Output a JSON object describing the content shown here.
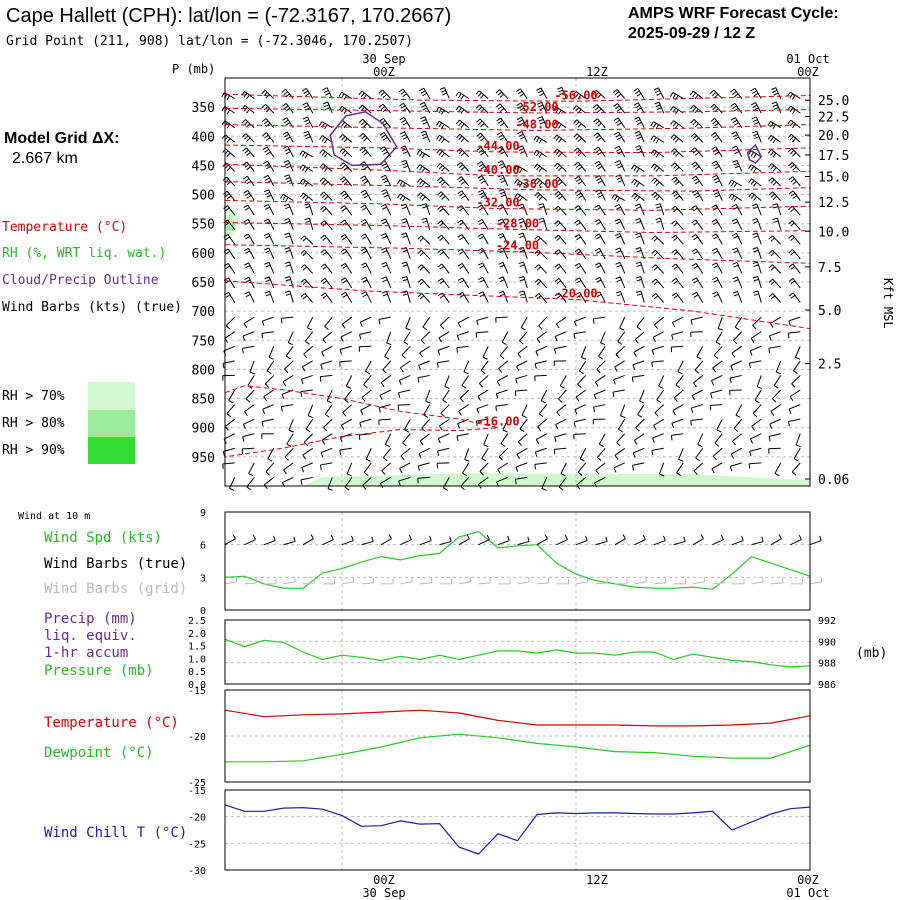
{
  "header": {
    "title": "Cape Hallett (CPH):  lat/lon = (-72.3167, 170.2667)",
    "grid_point": "Grid Point (211, 908) lat/lon = (-72.3046, 170.2507)",
    "cycle_label": "AMPS WRF Forecast Cycle:",
    "cycle_value": "2025-09-29 / 12  Z",
    "model_grid_label": "Model Grid ΔX:",
    "model_grid_value": "2.667 km"
  },
  "time_axis": {
    "top": [
      {
        "date": "30 Sep",
        "time": "00Z"
      },
      {
        "date": "",
        "time": "12Z"
      },
      {
        "date": "01 Oct",
        "time": "00Z"
      }
    ],
    "bottom": [
      {
        "time": "00Z",
        "date": "30 Sep"
      },
      {
        "time": "12Z",
        "date": ""
      },
      {
        "time": "00Z",
        "date": "01 Oct"
      }
    ]
  },
  "legend": {
    "temperature": "Temperature (°C)",
    "rh": "RH (%, WRT liq. wat.)",
    "cloud": "Cloud/Precip Outline",
    "wind": "Wind Barbs (kts) (true)",
    "rh_levels": [
      {
        "label": "RH > 70%",
        "color": "#d2f8d2"
      },
      {
        "label": "RH > 80%",
        "color": "#9ceb9c"
      },
      {
        "label": "RH > 90%",
        "color": "#33dd33"
      }
    ]
  },
  "colors": {
    "temperature": "#dd0000",
    "rh_green": "#22cc22",
    "cloud": "#6a2b8f",
    "wind_chill": "#1c1ca8",
    "grid_barbs": "#bbbbbb",
    "text": "#000000"
  },
  "chart_data": [
    {
      "type": "line",
      "name": "time-height cross section",
      "ylabel": "P (mb)",
      "yticks": [
        "350",
        "400",
        "450",
        "500",
        "550",
        "600",
        "650",
        "700",
        "750",
        "800",
        "850",
        "900",
        "950"
      ],
      "ylim": [
        1000,
        300
      ],
      "right_label": "Kft MSL",
      "right_ticks": [
        "25.0",
        "22.5",
        "20.0",
        "17.5",
        "15.0",
        "12.5",
        "10.0",
        "7.5",
        "5.0",
        "2.5",
        "0.06"
      ],
      "x_range_hours": [
        -6,
        24
      ],
      "isotherms": [
        {
          "label": "-56.00",
          "points": [
            [
              -6,
              328
            ],
            [
              4,
              338
            ],
            [
              12,
              340
            ],
            [
              18,
              335
            ],
            [
              24,
              330
            ]
          ]
        },
        {
          "label": "-52.00",
          "points": [
            [
              -6,
              352
            ],
            [
              2,
              356
            ],
            [
              10,
              360
            ],
            [
              18,
              358
            ],
            [
              24,
              354
            ]
          ]
        },
        {
          "label": "-48.00",
          "points": [
            [
              -6,
              380
            ],
            [
              3,
              386
            ],
            [
              10,
              390
            ],
            [
              18,
              386
            ],
            [
              24,
              380
            ]
          ]
        },
        {
          "label": "-44.00",
          "points": [
            [
              -6,
              415
            ],
            [
              2,
              420
            ],
            [
              8,
              427
            ],
            [
              16,
              428
            ],
            [
              24,
              420
            ]
          ]
        },
        {
          "label": "-40.00",
          "points": [
            [
              -6,
              448
            ],
            [
              2,
              458
            ],
            [
              8,
              468
            ],
            [
              16,
              468
            ],
            [
              24,
              460
            ]
          ]
        },
        {
          "label": "-36.00",
          "points": [
            [
              -6,
              478
            ],
            [
              4,
              486
            ],
            [
              10,
              492
            ],
            [
              18,
              494
            ],
            [
              24,
              488
            ]
          ]
        },
        {
          "label": "-32.00",
          "points": [
            [
              -6,
              510
            ],
            [
              2,
              516
            ],
            [
              8,
              524
            ],
            [
              16,
              527
            ],
            [
              24,
              520
            ]
          ]
        },
        {
          "label": "-28.00",
          "points": [
            [
              -6,
              548
            ],
            [
              2,
              553
            ],
            [
              9,
              560
            ],
            [
              16,
              565
            ],
            [
              24,
              562
            ]
          ]
        },
        {
          "label": "-24.00",
          "points": [
            [
              -6,
              586
            ],
            [
              3,
              592
            ],
            [
              9,
              598
            ],
            [
              17,
              610
            ],
            [
              24,
              618
            ]
          ]
        },
        {
          "label": "-20.00",
          "points": [
            [
              -6,
              648
            ],
            [
              1,
              665
            ],
            [
              6,
              672
            ],
            [
              12,
              680
            ],
            [
              18,
              700
            ],
            [
              24,
              730
            ]
          ]
        },
        {
          "label": "-16.00",
          "points": [
            [
              -6,
              840
            ],
            [
              -5,
              828
            ],
            [
              -3,
              835
            ],
            [
              0,
              850
            ],
            [
              3,
              872
            ],
            [
              6,
              885
            ],
            [
              8,
              900
            ],
            [
              6,
              905
            ],
            [
              3,
              903
            ],
            [
              0,
              915
            ],
            [
              -3,
              935
            ],
            [
              -6,
              950
            ]
          ]
        }
      ],
      "rh_regions": [
        {
          "level": ">70%",
          "points": [
            [
              -6,
              520
            ],
            [
              -5.2,
              535
            ],
            [
              -5.6,
              570
            ],
            [
              -6,
              570
            ]
          ]
        },
        {
          "level": ">80%",
          "points": [
            [
              -6,
              540
            ],
            [
              -5.4,
              548
            ],
            [
              -5.6,
              562
            ],
            [
              -6,
              562
            ]
          ]
        },
        {
          "level": ">70%",
          "points": [
            [
              -2,
              1000
            ],
            [
              -1,
              985
            ],
            [
              6,
              978
            ],
            [
              18,
              980
            ],
            [
              24,
              990
            ],
            [
              24,
              1000
            ]
          ]
        }
      ],
      "cloud_outline": [
        {
          "points": [
            [
              -0.6,
              398
            ],
            [
              0.2,
              365
            ],
            [
              1.2,
              358
            ],
            [
              2.1,
              378
            ],
            [
              2.8,
              418
            ],
            [
              2,
              448
            ],
            [
              0.5,
              450
            ],
            [
              -0.4,
              432
            ]
          ]
        },
        {
          "points": [
            [
              20.8,
              428
            ],
            [
              21.2,
              415
            ],
            [
              21.5,
              435
            ],
            [
              21.2,
              446
            ],
            [
              20.9,
              440
            ]
          ]
        }
      ]
    },
    {
      "type": "line",
      "name": "10 m wind",
      "title": "Wind at 10 m",
      "legend": [
        "Wind Spd (kts)",
        "Wind Barbs (true)",
        "Wind Barbs (grid)"
      ],
      "ylim": [
        0,
        9
      ],
      "yticks": [
        "0",
        "3",
        "6",
        "9"
      ],
      "x_hours": [
        -6,
        -5,
        -4,
        -3,
        -2,
        -1,
        0,
        1,
        2,
        3,
        4,
        5,
        6,
        7,
        8,
        9,
        10,
        11,
        12,
        13,
        14,
        15,
        16,
        17,
        18,
        19,
        20,
        21,
        22,
        23,
        24
      ],
      "series": [
        {
          "name": "Wind Spd (kts)",
          "values": [
            3.0,
            3.1,
            2.4,
            2.0,
            2.0,
            3.4,
            3.8,
            4.4,
            4.9,
            4.6,
            5.0,
            5.2,
            6.7,
            7.2,
            5.7,
            5.9,
            6.0,
            4.3,
            3.3,
            2.7,
            2.4,
            2.1,
            2.0,
            2.0,
            2.1,
            1.9,
            3.3,
            4.9,
            4.3,
            3.7,
            3.1
          ]
        }
      ]
    },
    {
      "type": "line",
      "name": "precip and pressure",
      "legend": [
        "Precip (mm)",
        "liq. equiv.",
        "1-hr accum",
        "Pressure (mb)"
      ],
      "ylim": [
        0,
        2.5
      ],
      "yticks": [
        "0.0",
        "0.5",
        "1.0",
        "1.5",
        "2.0",
        "2.5"
      ],
      "y2lim": [
        986,
        992
      ],
      "y2ticks": [
        "986",
        "988",
        "990",
        "992"
      ],
      "y2label": "(mb)",
      "x_hours": [
        -6,
        -5,
        -4,
        -3,
        -2,
        -1,
        0,
        1,
        2,
        3,
        4,
        5,
        6,
        7,
        8,
        9,
        10,
        11,
        12,
        13,
        14,
        15,
        16,
        17,
        18,
        19,
        20,
        21,
        22,
        23,
        24
      ],
      "series": [
        {
          "name": "Pressure (mb)",
          "values": [
            990.2,
            989.5,
            990.1,
            989.9,
            989.0,
            988.3,
            988.7,
            988.5,
            988.2,
            988.6,
            988.3,
            988.7,
            988.3,
            988.7,
            989.1,
            989.1,
            988.9,
            989.2,
            988.9,
            988.9,
            988.7,
            989.0,
            989.0,
            988.3,
            988.8,
            988.5,
            988.2,
            988.1,
            987.8,
            987.6,
            987.7
          ]
        }
      ]
    },
    {
      "type": "line",
      "name": "temperature and dewpoint",
      "legend": [
        "Temperature (°C)",
        "Dewpoint (°C)"
      ],
      "ylim": [
        -25,
        -15
      ],
      "yticks": [
        "-25",
        "-20",
        "-15"
      ],
      "x_hours": [
        -6,
        -4,
        -2,
        0,
        2,
        4,
        6,
        8,
        10,
        12,
        14,
        16,
        18,
        20,
        22,
        24
      ],
      "series": [
        {
          "name": "Temperature (°C)",
          "values": [
            -17.2,
            -17.9,
            -17.7,
            -17.6,
            -17.4,
            -17.2,
            -17.5,
            -18.3,
            -18.8,
            -18.8,
            -18.8,
            -18.9,
            -18.9,
            -18.8,
            -18.6,
            -17.8
          ]
        },
        {
          "name": "Dewpoint (°C)",
          "values": [
            -22.8,
            -22.8,
            -22.7,
            -22.0,
            -21.2,
            -20.2,
            -19.8,
            -20.2,
            -20.8,
            -21.2,
            -21.7,
            -21.8,
            -22.2,
            -22.4,
            -22.4,
            -21.0
          ]
        }
      ]
    },
    {
      "type": "line",
      "name": "wind chill",
      "legend": [
        "Wind Chill T (°C)"
      ],
      "ylim": [
        -30,
        -15
      ],
      "yticks": [
        "-30",
        "-25",
        "-20",
        "-15"
      ],
      "x_hours": [
        -6,
        -5,
        -4,
        -3,
        -2,
        -1,
        0,
        1,
        2,
        3,
        4,
        5,
        6,
        7,
        8,
        9,
        10,
        11,
        12,
        13,
        14,
        15,
        16,
        17,
        18,
        19,
        20,
        21,
        22,
        23,
        24
      ],
      "series": [
        {
          "name": "Wind Chill T (°C)",
          "values": [
            -17.8,
            -19.0,
            -19.0,
            -18.4,
            -18.3,
            -18.6,
            -19.8,
            -21.8,
            -21.7,
            -20.8,
            -21.4,
            -21.3,
            -25.7,
            -27.0,
            -23.2,
            -24.5,
            -19.6,
            -19.3,
            -19.4,
            -19.3,
            -19.3,
            -19.4,
            -19.5,
            -19.5,
            -19.3,
            -19.0,
            -22.5,
            -21.0,
            -19.5,
            -18.5,
            -18.2
          ]
        }
      ]
    }
  ]
}
